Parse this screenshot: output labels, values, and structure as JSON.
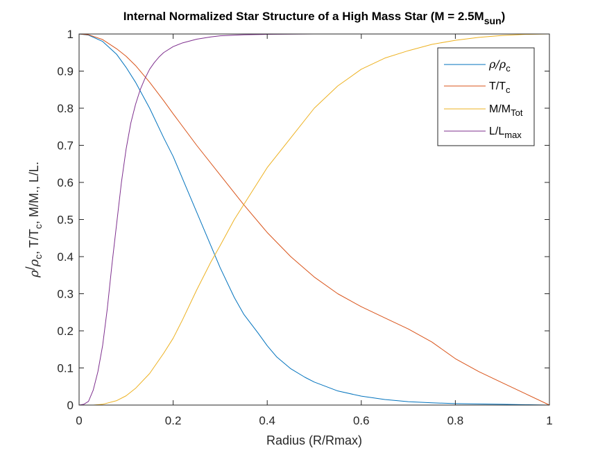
{
  "chart_data": {
    "type": "line",
    "title": {
      "main": "Internal Normalized Star Structure of a High Mass Star (M = 2.5M",
      "sub": "sun",
      "close": ")"
    },
    "xlabel": "Radius (R/Rmax)",
    "ylabel": {
      "p1": "ρ",
      "p2": "/",
      "p3": "ρ",
      "p4": "c",
      "p5": ", T/T",
      "p6": "c",
      "p7": ", M/M",
      "p8": "., L/L."
    },
    "xlim": [
      0,
      1
    ],
    "ylim": [
      0,
      1
    ],
    "xticks": [
      0,
      0.2,
      0.4,
      0.6,
      0.8,
      1
    ],
    "xtick_labels": [
      "0",
      "0.2",
      "0.4",
      "0.6",
      "0.8",
      "1"
    ],
    "yticks": [
      0,
      0.1,
      0.2,
      0.3,
      0.4,
      0.5,
      0.6,
      0.7,
      0.8,
      0.9,
      1
    ],
    "ytick_labels": [
      "0",
      "0.1",
      "0.2",
      "0.3",
      "0.4",
      "0.5",
      "0.6",
      "0.7",
      "0.8",
      "0.9",
      "1"
    ],
    "grid": false,
    "legend_position": "top-right",
    "series": [
      {
        "name": {
          "base": "ρ/ρ",
          "sub": "c"
        },
        "color": "#0072BD",
        "x": [
          0,
          0.02,
          0.05,
          0.08,
          0.1,
          0.12,
          0.15,
          0.18,
          0.2,
          0.22,
          0.25,
          0.28,
          0.3,
          0.33,
          0.35,
          0.38,
          0.4,
          0.42,
          0.45,
          0.48,
          0.5,
          0.55,
          0.6,
          0.65,
          0.7,
          0.75,
          0.8,
          0.85,
          0.9,
          0.95,
          1
        ],
        "y": [
          1,
          0.997,
          0.98,
          0.945,
          0.91,
          0.87,
          0.8,
          0.72,
          0.67,
          0.61,
          0.52,
          0.43,
          0.37,
          0.29,
          0.245,
          0.195,
          0.16,
          0.13,
          0.098,
          0.075,
          0.062,
          0.038,
          0.024,
          0.015,
          0.009,
          0.006,
          0.004,
          0.003,
          0.002,
          0.001,
          0
        ]
      },
      {
        "name": {
          "base": "T/T",
          "sub": "c"
        },
        "color": "#D95319",
        "x": [
          0,
          0.02,
          0.05,
          0.08,
          0.1,
          0.12,
          0.15,
          0.18,
          0.2,
          0.25,
          0.3,
          0.35,
          0.4,
          0.45,
          0.5,
          0.55,
          0.6,
          0.65,
          0.7,
          0.75,
          0.8,
          0.85,
          0.9,
          0.95,
          1
        ],
        "y": [
          1,
          0.998,
          0.985,
          0.96,
          0.94,
          0.915,
          0.87,
          0.82,
          0.785,
          0.7,
          0.62,
          0.54,
          0.465,
          0.4,
          0.345,
          0.3,
          0.265,
          0.235,
          0.205,
          0.17,
          0.125,
          0.09,
          0.06,
          0.03,
          0
        ]
      },
      {
        "name": {
          "base": "M/M",
          "sub": "Tot"
        },
        "color": "#EDB120",
        "x": [
          0,
          0.03,
          0.05,
          0.08,
          0.1,
          0.12,
          0.15,
          0.18,
          0.2,
          0.22,
          0.25,
          0.28,
          0.3,
          0.33,
          0.35,
          0.38,
          0.4,
          0.45,
          0.5,
          0.55,
          0.6,
          0.65,
          0.7,
          0.75,
          0.8,
          0.85,
          0.9,
          0.95,
          1
        ],
        "y": [
          0,
          0,
          0.002,
          0.012,
          0.025,
          0.045,
          0.085,
          0.14,
          0.18,
          0.23,
          0.31,
          0.385,
          0.43,
          0.5,
          0.54,
          0.6,
          0.64,
          0.72,
          0.8,
          0.86,
          0.905,
          0.935,
          0.955,
          0.972,
          0.983,
          0.991,
          0.996,
          0.999,
          1
        ]
      },
      {
        "name": {
          "base": "L/L",
          "sub": "max"
        },
        "color": "#7E2F8E",
        "x": [
          0,
          0.01,
          0.02,
          0.03,
          0.04,
          0.05,
          0.06,
          0.07,
          0.08,
          0.09,
          0.1,
          0.11,
          0.12,
          0.13,
          0.14,
          0.15,
          0.16,
          0.17,
          0.18,
          0.2,
          0.22,
          0.25,
          0.28,
          0.3,
          0.35,
          0.4,
          0.5,
          0.6,
          0.8,
          1
        ],
        "y": [
          0,
          0.002,
          0.01,
          0.04,
          0.09,
          0.16,
          0.26,
          0.38,
          0.49,
          0.6,
          0.69,
          0.76,
          0.81,
          0.85,
          0.88,
          0.905,
          0.923,
          0.938,
          0.95,
          0.966,
          0.976,
          0.986,
          0.992,
          0.995,
          0.998,
          0.999,
          1,
          1,
          1,
          1
        ]
      }
    ]
  }
}
